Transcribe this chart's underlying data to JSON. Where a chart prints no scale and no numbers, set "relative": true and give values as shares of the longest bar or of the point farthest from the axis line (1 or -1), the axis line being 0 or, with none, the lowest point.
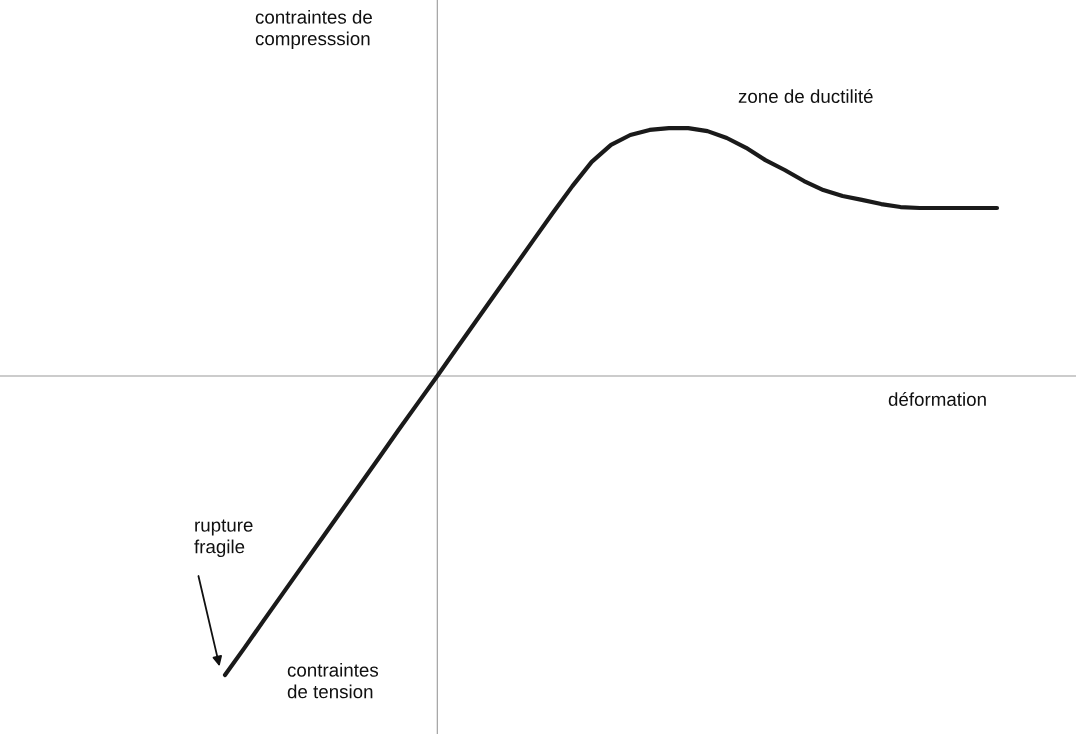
{
  "chart_data": {
    "type": "line",
    "relative": true,
    "color": "#1a1a1a",
    "categories": [
      null,
      null,
      null,
      null,
      null,
      null,
      null,
      null,
      null,
      null,
      null,
      null,
      null,
      null,
      null,
      null,
      null,
      null,
      null,
      null,
      null,
      null,
      null,
      null,
      null,
      null,
      null,
      null,
      null,
      null,
      null,
      null,
      null,
      null,
      null,
      null,
      null,
      null,
      null,
      null,
      null
    ],
    "values": [
      -1,
      -0.91,
      -0.818,
      -0.727,
      -0.636,
      -0.545,
      -0.454,
      -0.363,
      -0.272,
      -0.18,
      -0.09,
      0,
      0.092,
      0.183,
      0.274,
      0.365,
      0.456,
      0.547,
      0.635,
      0.716,
      0.773,
      0.806,
      0.823,
      0.829,
      0.829,
      0.819,
      0.796,
      0.763,
      0.722,
      0.689,
      0.652,
      0.622,
      0.602,
      0.589,
      0.575,
      0.565,
      0.562,
      0.562,
      0.562,
      0.562,
      0.562
    ],
    "annotations": [
      "contraintes de\ncompresssion",
      "zone de ductilité",
      "déformation",
      "rupture\nfragile",
      "contraintes\nde tension"
    ],
    "marker": "none",
    "line_style": "solid"
  }
}
